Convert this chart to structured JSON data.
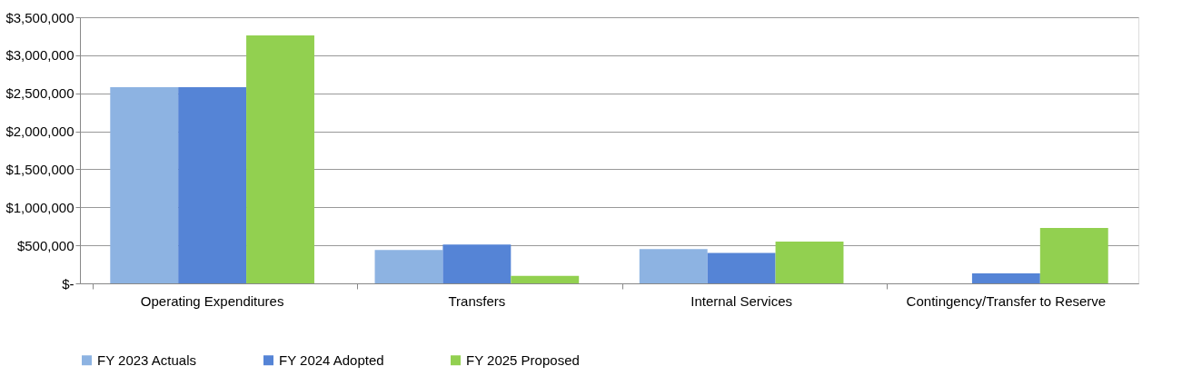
{
  "chart_data": {
    "type": "bar",
    "categories": [
      "Operating Expenditures",
      "Transfers",
      "Internal Services",
      "Contingency/Transfer to Reserve"
    ],
    "series": [
      {
        "name": "FY 2023 Actuals",
        "color": "#8db3e2",
        "values": [
          2580000,
          440000,
          450000,
          null
        ]
      },
      {
        "name": "FY 2024 Adopted",
        "color": "#5584d6",
        "values": [
          2580000,
          510000,
          400000,
          130000
        ]
      },
      {
        "name": "FY 2025 Proposed",
        "color": "#92d050",
        "values": [
          3260000,
          100000,
          550000,
          730000
        ]
      }
    ],
    "ylim": [
      0,
      3500000
    ],
    "yticks": [
      {
        "value": 0,
        "label": "$-"
      },
      {
        "value": 500000,
        "label": "$500,000"
      },
      {
        "value": 1000000,
        "label": "$1,000,000"
      },
      {
        "value": 1500000,
        "label": "$1,500,000"
      },
      {
        "value": 2000000,
        "label": "$2,000,000"
      },
      {
        "value": 2500000,
        "label": "$2,500,000"
      },
      {
        "value": 3000000,
        "label": "$3,000,000"
      },
      {
        "value": 3500000,
        "label": "$3,500,000"
      }
    ],
    "grid": "y",
    "legend": "bottom"
  }
}
